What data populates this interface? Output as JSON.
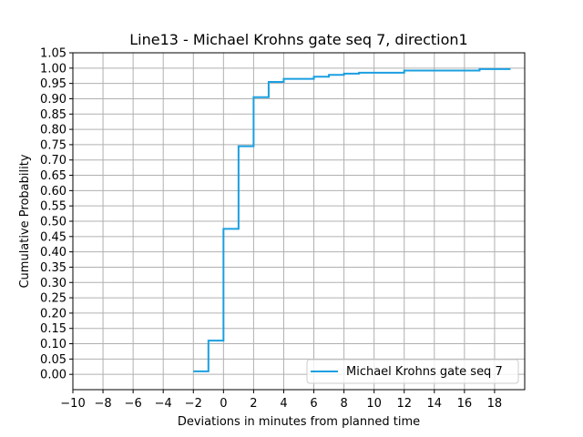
{
  "chart_data": {
    "type": "line",
    "step": "post",
    "title": "Line13 - Michael Krohns gate seq 7, direction1",
    "xlabel": "Deviations in minutes from planned time",
    "ylabel": "Cumulative Probability",
    "xlim": [
      -10,
      20
    ],
    "ylim": [
      -0.05,
      1.05
    ],
    "xticks": [
      -10,
      -8,
      -6,
      -4,
      -2,
      0,
      2,
      4,
      6,
      8,
      10,
      12,
      14,
      16,
      18
    ],
    "xtick_labels": [
      "−10",
      "−8",
      "−6",
      "−4",
      "−2",
      "0",
      "2",
      "4",
      "6",
      "8",
      "10",
      "12",
      "14",
      "16",
      "18"
    ],
    "yticks": [
      0,
      0.05,
      0.1,
      0.15,
      0.2,
      0.25,
      0.3,
      0.35,
      0.4,
      0.45,
      0.5,
      0.55,
      0.6,
      0.65,
      0.7,
      0.75,
      0.8,
      0.85,
      0.9,
      0.95,
      1.0,
      1.05
    ],
    "ytick_labels": [
      "0.00",
      "0.05",
      "0.10",
      "0.15",
      "0.20",
      "0.25",
      "0.30",
      "0.35",
      "0.40",
      "0.45",
      "0.50",
      "0.55",
      "0.60",
      "0.65",
      "0.70",
      "0.75",
      "0.80",
      "0.85",
      "0.90",
      "0.95",
      "1.00",
      "1.05"
    ],
    "grid": true,
    "legend_position": "lower-right",
    "series": [
      {
        "name": "Michael Krohns gate seq 7",
        "color": "#1a9fe0",
        "x": [
          -2,
          -1,
          0,
          1,
          2,
          3,
          4,
          6,
          7,
          8,
          9,
          12,
          17,
          19
        ],
        "y": [
          0.01,
          0.11,
          0.475,
          0.745,
          0.905,
          0.955,
          0.965,
          0.972,
          0.978,
          0.982,
          0.985,
          0.992,
          0.997,
          1.0
        ]
      }
    ]
  }
}
